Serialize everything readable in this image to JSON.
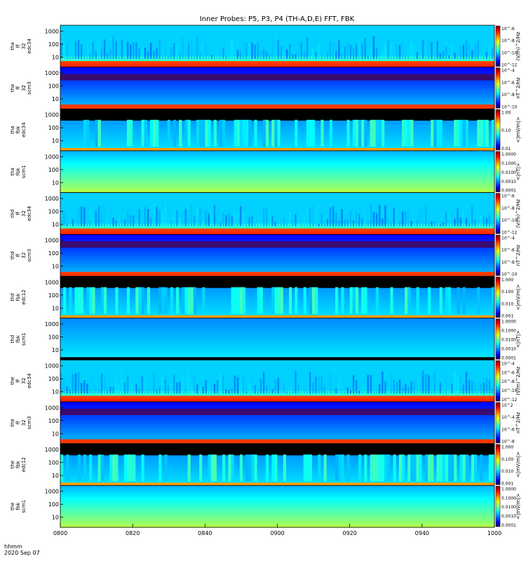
{
  "title": "Inner Probes: P5, P3, P4 (TH-A,D,E) FFT, FBK",
  "footer": {
    "time_label": "hhmm",
    "date": "2020 Sep 07"
  },
  "colors": {
    "bg": "#ffffff",
    "axes": "#000000"
  },
  "chart_data": {
    "type": "heatmap",
    "x_axis": {
      "range": [
        "0800",
        "1000"
      ],
      "ticks": [
        "0800",
        "0820",
        "0840",
        "0900",
        "0920",
        "0940",
        "1000"
      ]
    },
    "panels": [
      {
        "labels": [
          "tha",
          "ff",
          "32",
          "edc34"
        ],
        "yticks": [
          "1000",
          "100",
          "10"
        ],
        "zunit": "(V/m)^2/Hz",
        "cbar_ticks": [
          "10^-6",
          "10^-8",
          "10^-10",
          "10^-12"
        ],
        "style": "fft_e"
      },
      {
        "labels": [
          "tha",
          "ff",
          "32",
          "scm3"
        ],
        "yticks": [
          "1000",
          "100",
          "10"
        ],
        "zunit": "nT^2/Hz",
        "cbar_ticks": [
          "10^-4",
          "10^-6",
          "10^-8",
          "10^-10"
        ],
        "style": "fft_b"
      },
      {
        "labels": [
          "tha",
          "fbk",
          "edc34"
        ],
        "yticks": [
          "1000",
          "100",
          "10"
        ],
        "zunit": "<|mV/m|>",
        "cbar_ticks": [
          "1.00",
          "0.10",
          "0.01"
        ],
        "style": "fbk_e"
      },
      {
        "labels": [
          "tha",
          "fbk",
          "scm1"
        ],
        "yticks": [
          "1000",
          "100",
          "10"
        ],
        "zunit": "<|nT|>",
        "cbar_ticks": [
          "1.0000",
          "0.1000",
          "0.0100",
          "0.0010",
          "0.0001"
        ],
        "style": "fbk_b"
      },
      {
        "labels": [
          "thd",
          "ff",
          "32",
          "edc34"
        ],
        "yticks": [
          "1000",
          "100",
          "10"
        ],
        "zunit": "(V/m)^2/Hz",
        "cbar_ticks": [
          "10^-6",
          "10^-8",
          "10^-10",
          "10^-12"
        ],
        "style": "fft_e"
      },
      {
        "labels": [
          "thd",
          "ff",
          "32",
          "scm3"
        ],
        "yticks": [
          "1000",
          "100",
          "10"
        ],
        "zunit": "nT^2/Hz",
        "cbar_ticks": [
          "10^-4",
          "10^-6",
          "10^-8",
          "10^-10"
        ],
        "style": "fft_b"
      },
      {
        "labels": [
          "thd",
          "fbk",
          "edc12"
        ],
        "yticks": [
          "1000",
          "100",
          "10"
        ],
        "zunit": "<|mV/m|>",
        "cbar_ticks": [
          "1.000",
          "0.100",
          "0.010",
          "0.001"
        ],
        "style": "fbk_e"
      },
      {
        "labels": [
          "thd",
          "fbk",
          "scm1"
        ],
        "yticks": [
          "1000",
          "100",
          "10"
        ],
        "zunit": "<|nT|>",
        "cbar_ticks": [
          "1.0000",
          "0.1000",
          "0.0100",
          "0.0010",
          "0.0001"
        ],
        "style": "fbk_b2"
      },
      {
        "labels": [
          "the",
          "ff",
          "32",
          "edc34"
        ],
        "yticks": [
          "1000",
          "100",
          "10"
        ],
        "zunit": "(V/m)^2/Hz",
        "cbar_ticks": [
          "10^-4",
          "10^-6",
          "10^-8",
          "10^-10",
          "10^-12"
        ],
        "style": "fft_e"
      },
      {
        "labels": [
          "the",
          "ff",
          "32",
          "scm3"
        ],
        "yticks": [
          "1000",
          "100",
          "10"
        ],
        "zunit": "nT^2/Hz",
        "cbar_ticks": [
          "10^2",
          "10^-4",
          "10^-6",
          "10^-8"
        ],
        "style": "fft_b"
      },
      {
        "labels": [
          "the",
          "fbk",
          "edc12"
        ],
        "yticks": [
          "1000",
          "100",
          "10"
        ],
        "zunit": "<|mV/m|>",
        "cbar_ticks": [
          "1.000",
          "0.100",
          "0.010",
          "0.001"
        ],
        "style": "fbk_e"
      },
      {
        "labels": [
          "the",
          "fbk",
          "scm1"
        ],
        "yticks": [
          "1000",
          "100",
          "10"
        ],
        "zunit": "<|mV/m|>",
        "cbar_ticks": [
          "1.0000",
          "0.1000",
          "0.0100",
          "0.0010",
          "0.0001"
        ],
        "style": "fbk_b"
      }
    ]
  }
}
